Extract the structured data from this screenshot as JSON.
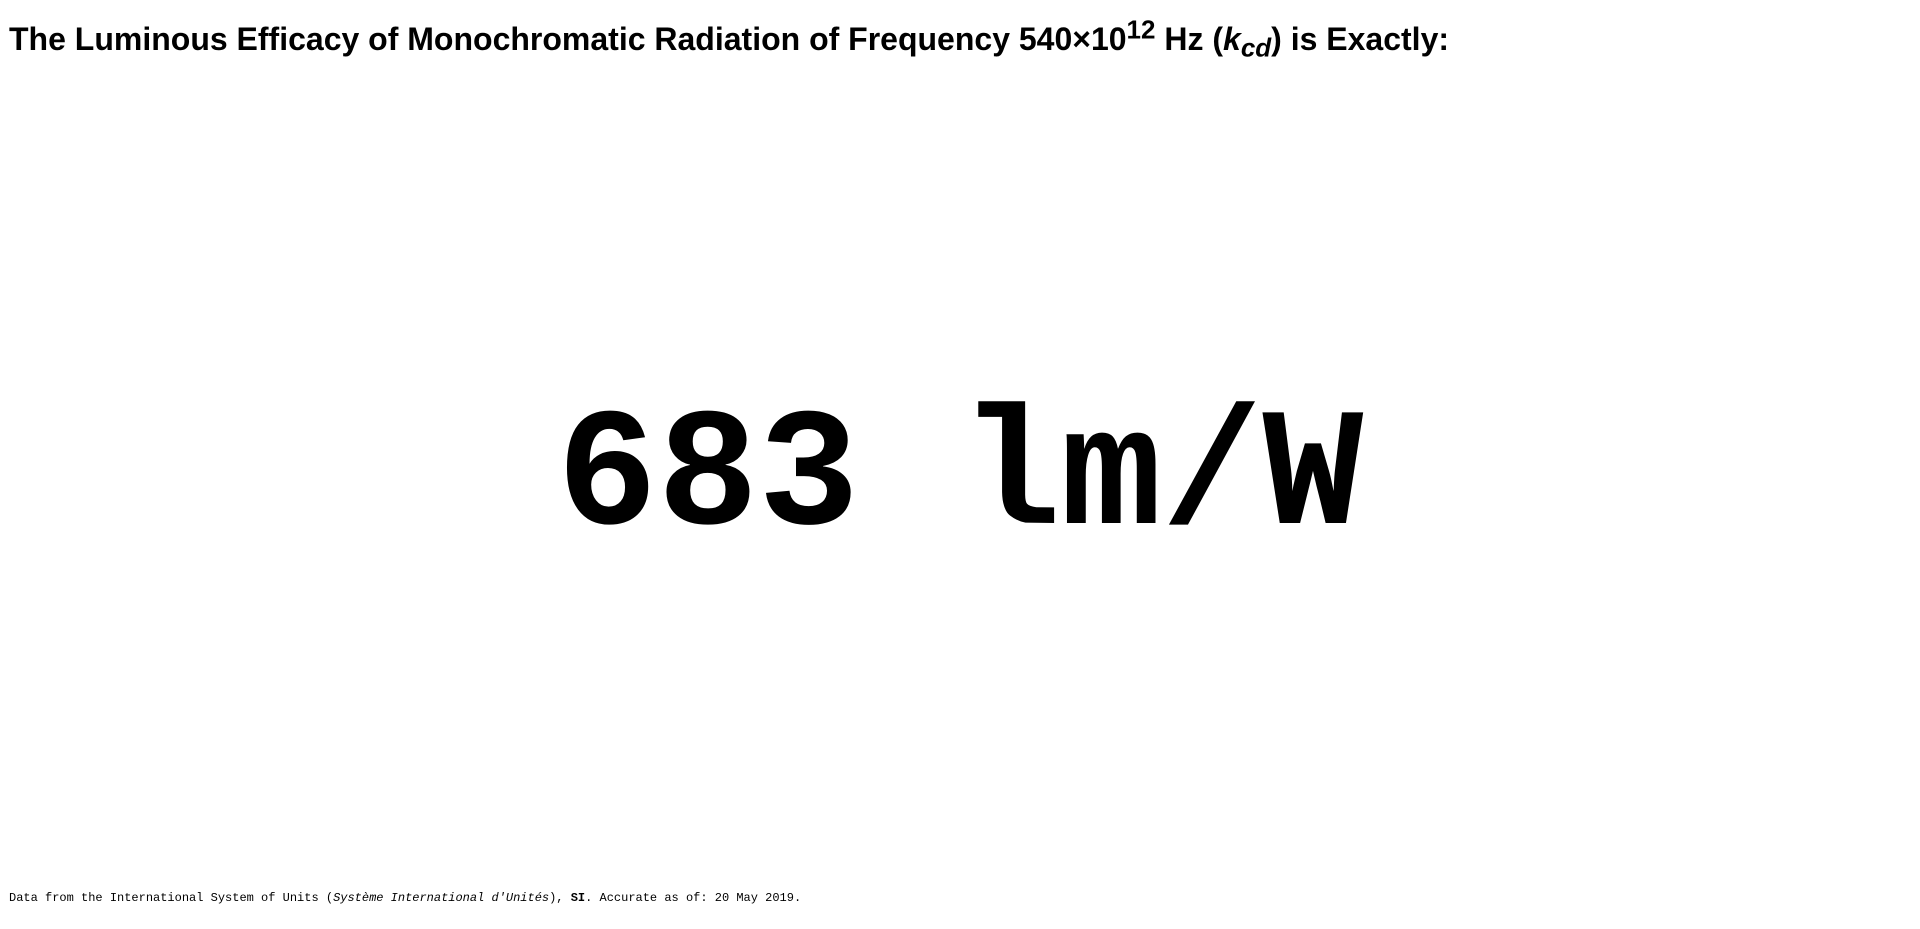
{
  "heading": {
    "prefix": "The Luminous Efficacy of Monochromatic Radiation of Frequency 540×10",
    "exponent": "12",
    "unit_before_symbol": " Hz (",
    "symbol_base": "k",
    "symbol_subscript": "cd",
    "suffix": ") is Exactly:"
  },
  "value": {
    "number": "683",
    "unit": "lm/W"
  },
  "footer": {
    "intro": "Data from the International System of Units (",
    "french_name": "Système International d'Unités",
    "after_name": "), ",
    "abbreviation": "SI",
    "accuracy_label": ". Accurate as of: ",
    "date": "20 May 2019",
    "end": "."
  }
}
